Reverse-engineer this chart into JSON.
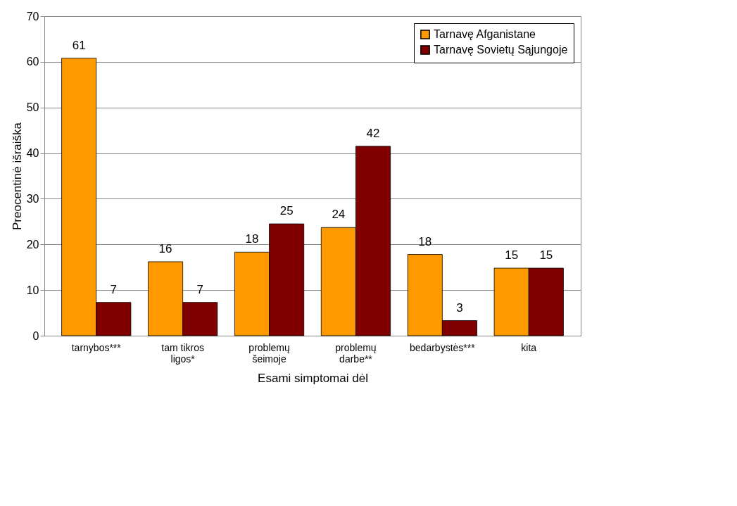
{
  "chart_data": {
    "type": "bar",
    "xlabel": "Esami simptomai dėl",
    "ylabel": "Preocentinė išraiška",
    "categories": [
      "tarnybos***",
      "tam tikros ligos*",
      "problemų šeimoje",
      "problemų darbe**",
      "bedarbystės***",
      "kita"
    ],
    "series": [
      {
        "name": "Tarnavę Afganistane",
        "color": "#ff9900",
        "values": [
          60.8,
          16.2,
          18.3,
          23.7,
          17.8,
          14.8
        ],
        "value_labels": [
          "61",
          "16",
          "18",
          "24",
          "18",
          "15"
        ]
      },
      {
        "name": "Tarnavę Sovietų Sąjungoje",
        "color": "#800000",
        "values": [
          7.3,
          7.3,
          24.5,
          41.5,
          3.3,
          14.8
        ],
        "value_labels": [
          "7",
          "7",
          "25",
          "42",
          "3",
          "15"
        ]
      }
    ],
    "ylim": [
      0,
      70
    ],
    "yticks": [
      0,
      10,
      20,
      30,
      40,
      50,
      60,
      70
    ],
    "grid": "y",
    "legend": "top right"
  }
}
